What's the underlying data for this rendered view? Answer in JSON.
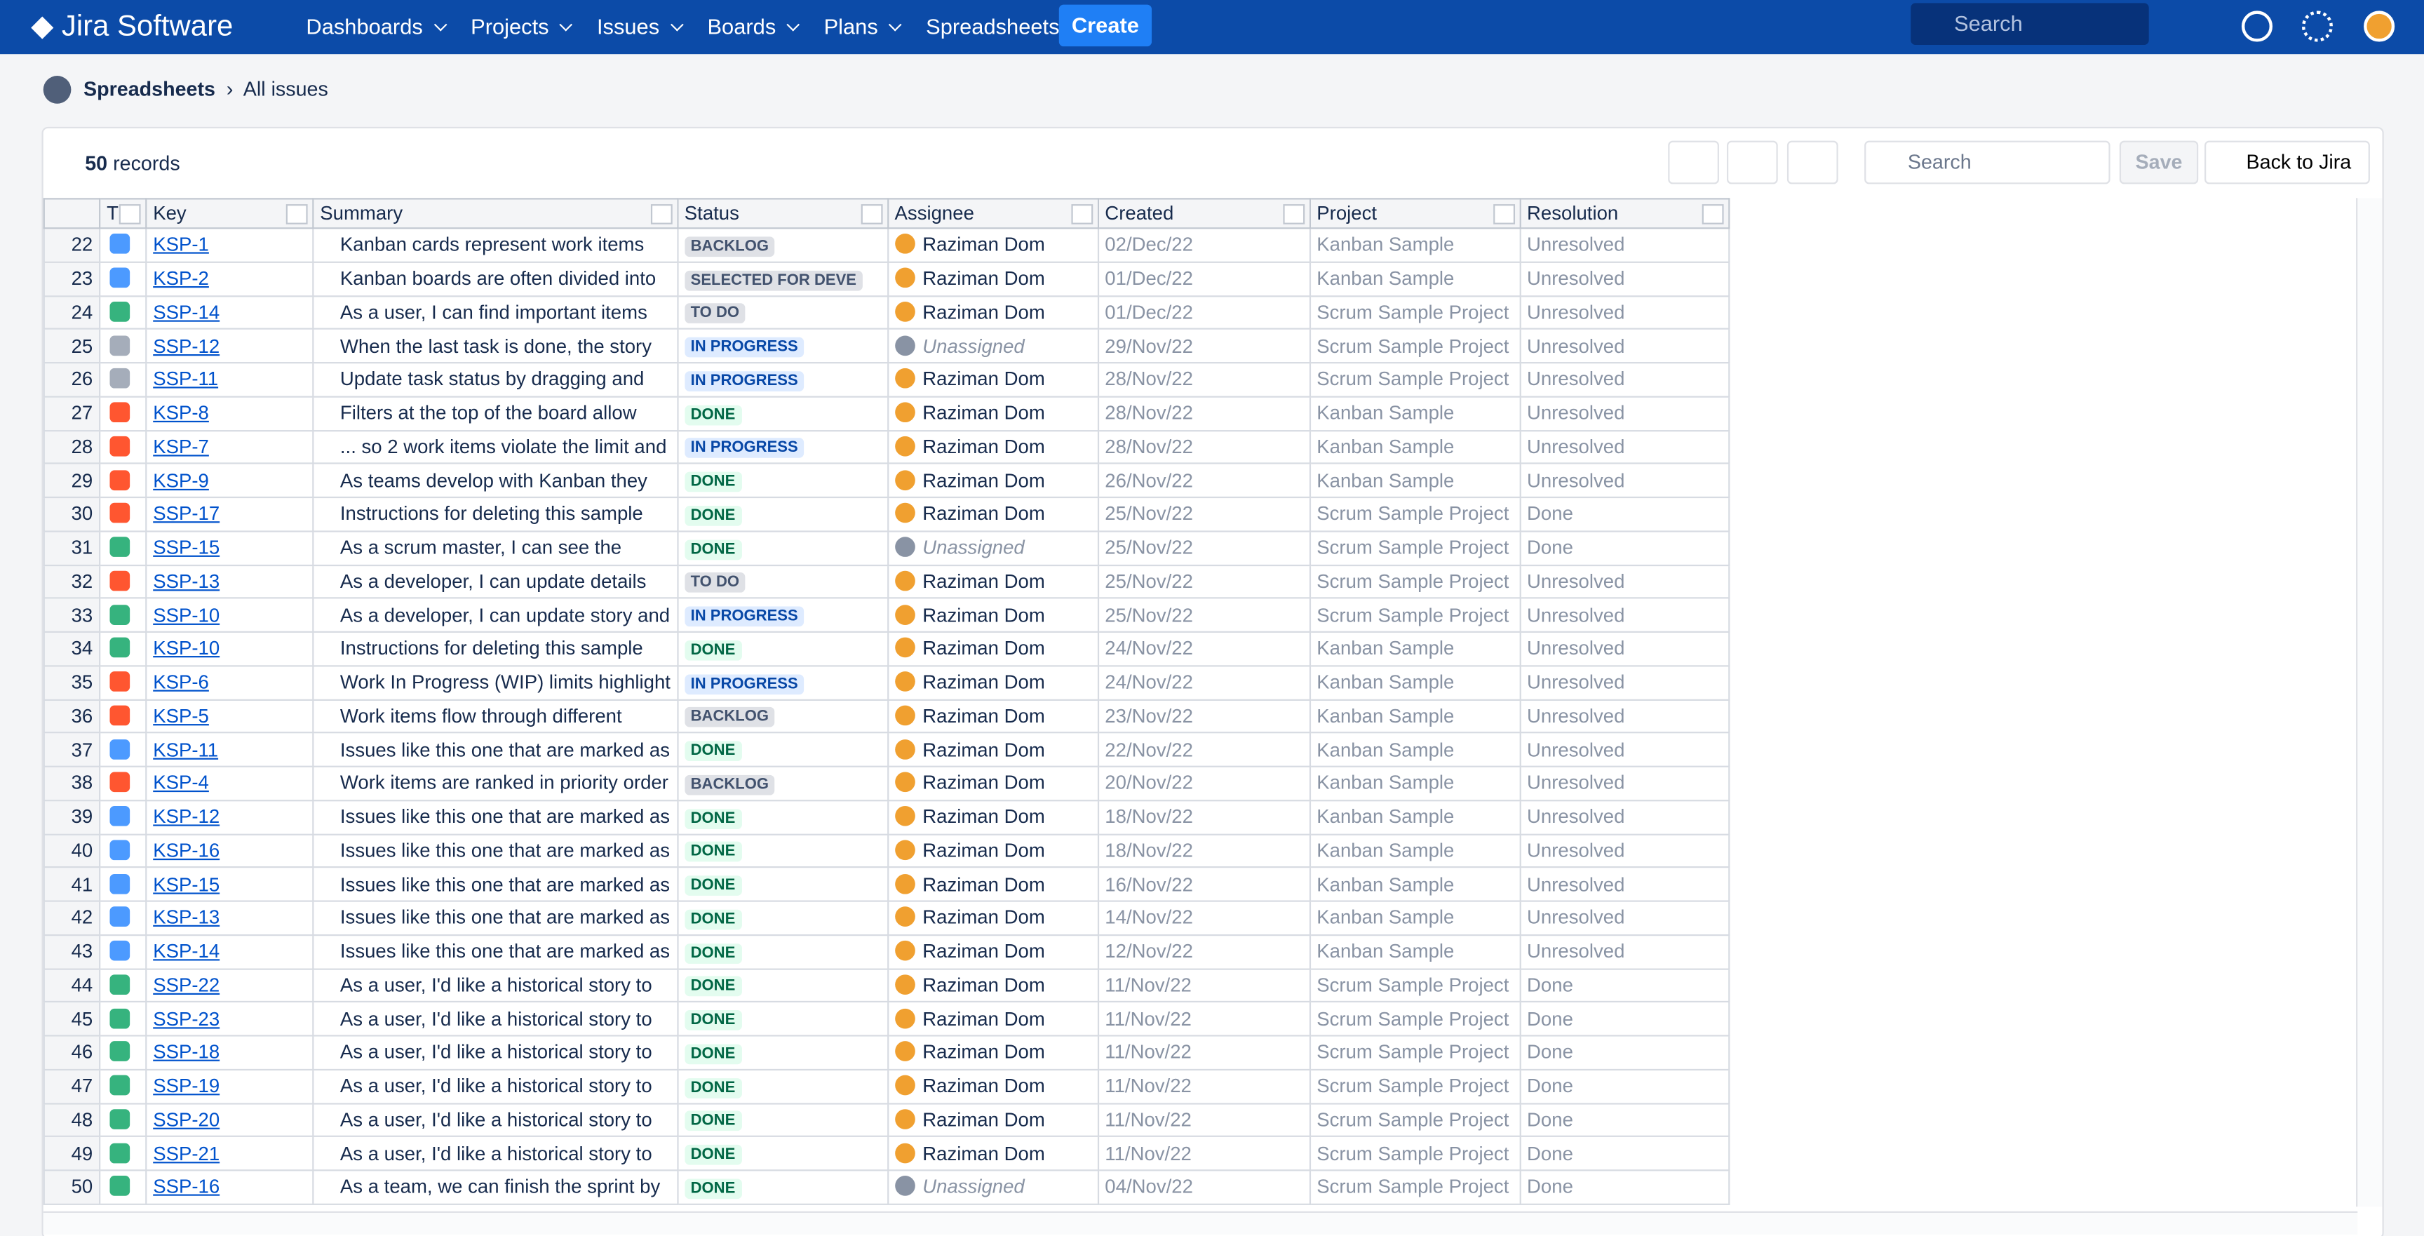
{
  "nav": {
    "logo": "Jira Software",
    "menu": [
      "Dashboards",
      "Projects",
      "Issues",
      "Boards",
      "Plans",
      "Spreadsheets"
    ],
    "create": "Create",
    "search": "Search"
  },
  "breadcrumb": {
    "parent": "Spreadsheets",
    "current": "All issues"
  },
  "toolbar": {
    "count": "50",
    "count_label": "records",
    "search": "Search",
    "save": "Save",
    "back": "Back to Jira"
  },
  "table": {
    "columns": [
      "T",
      "Key",
      "Summary",
      "Status",
      "Assignee",
      "Created",
      "Project",
      "Resolution"
    ],
    "rows": [
      {
        "num": 22,
        "icon_color": "#4c9aff",
        "key": "KSP-1",
        "summary": "Kanban cards represent work items",
        "status": "BACKLOG",
        "status_color": "#dfe1e6",
        "assignee": "Raziman Dom",
        "avatar_color": "#f0a030",
        "created": "02/Dec/22",
        "project": "Kanban Sample",
        "resolution": "Unresolved"
      },
      {
        "num": 23,
        "icon_color": "#4c9aff",
        "key": "KSP-2",
        "summary": "Kanban boards are often divided into",
        "status": "SELECTED FOR DEVE",
        "status_color": "#dfe1e6",
        "assignee": "Raziman Dom",
        "avatar_color": "#f0a030",
        "created": "01/Dec/22",
        "project": "Kanban Sample",
        "resolution": "Unresolved"
      },
      {
        "num": 24,
        "icon_color": "#36b37e",
        "key": "SSP-14",
        "summary": "As a user, I can find important items",
        "status": "TO DO",
        "status_color": "#dfe1e6",
        "assignee": "Raziman Dom",
        "avatar_color": "#f0a030",
        "created": "01/Dec/22",
        "project": "Scrum Sample Project",
        "resolution": "Unresolved"
      },
      {
        "num": 25,
        "icon_color": "#a5adba",
        "key": "SSP-12",
        "summary": "When the last task is done, the story",
        "status": "IN PROGRESS",
        "status_color": "#deebff",
        "assignee": "Unassigned",
        "avatar_color": "#8993a4",
        "created": "29/Nov/22",
        "project": "Scrum Sample Project",
        "resolution": "Unresolved"
      },
      {
        "num": 26,
        "icon_color": "#a5adba",
        "key": "SSP-11",
        "summary": "Update task status by dragging and",
        "status": "IN PROGRESS",
        "status_color": "#deebff",
        "assignee": "Raziman Dom",
        "avatar_color": "#f0a030",
        "created": "28/Nov/22",
        "project": "Scrum Sample Project",
        "resolution": "Unresolved"
      },
      {
        "num": 27,
        "icon_color": "#ff5630",
        "key": "KSP-8",
        "summary": "Filters at the top of the board allow",
        "status": "DONE",
        "status_color": "#e3fcef",
        "assignee": "Raziman Dom",
        "avatar_color": "#f0a030",
        "created": "28/Nov/22",
        "project": "Kanban Sample",
        "resolution": "Unresolved"
      },
      {
        "num": 28,
        "icon_color": "#ff5630",
        "key": "KSP-7",
        "summary": "... so 2 work items violate the limit and",
        "status": "IN PROGRESS",
        "status_color": "#deebff",
        "assignee": "Raziman Dom",
        "avatar_color": "#f0a030",
        "created": "28/Nov/22",
        "project": "Kanban Sample",
        "resolution": "Unresolved"
      },
      {
        "num": 29,
        "icon_color": "#ff5630",
        "key": "KSP-9",
        "summary": "As teams develop with Kanban they",
        "status": "DONE",
        "status_color": "#e3fcef",
        "assignee": "Raziman Dom",
        "avatar_color": "#f0a030",
        "created": "26/Nov/22",
        "project": "Kanban Sample",
        "resolution": "Unresolved"
      },
      {
        "num": 30,
        "icon_color": "#ff5630",
        "key": "SSP-17",
        "summary": "Instructions for deleting this sample",
        "status": "DONE",
        "status_color": "#e3fcef",
        "assignee": "Raziman Dom",
        "avatar_color": "#f0a030",
        "created": "25/Nov/22",
        "project": "Scrum Sample Project",
        "resolution": "Done"
      },
      {
        "num": 31,
        "icon_color": "#36b37e",
        "key": "SSP-15",
        "summary": "As a scrum master, I can see the",
        "status": "DONE",
        "status_color": "#e3fcef",
        "assignee": "Unassigned",
        "avatar_color": "#8993a4",
        "created": "25/Nov/22",
        "project": "Scrum Sample Project",
        "resolution": "Done"
      },
      {
        "num": 32,
        "icon_color": "#ff5630",
        "key": "SSP-13",
        "summary": "As a developer, I can update details",
        "status": "TO DO",
        "status_color": "#dfe1e6",
        "assignee": "Raziman Dom",
        "avatar_color": "#f0a030",
        "created": "25/Nov/22",
        "project": "Scrum Sample Project",
        "resolution": "Unresolved"
      },
      {
        "num": 33,
        "icon_color": "#36b37e",
        "key": "SSP-10",
        "summary": "As a developer, I can update story and",
        "status": "IN PROGRESS",
        "status_color": "#deebff",
        "assignee": "Raziman Dom",
        "avatar_color": "#f0a030",
        "created": "25/Nov/22",
        "project": "Scrum Sample Project",
        "resolution": "Unresolved"
      },
      {
        "num": 34,
        "icon_color": "#36b37e",
        "key": "KSP-10",
        "summary": "Instructions for deleting this sample",
        "status": "DONE",
        "status_color": "#e3fcef",
        "assignee": "Raziman Dom",
        "avatar_color": "#f0a030",
        "created": "24/Nov/22",
        "project": "Kanban Sample",
        "resolution": "Unresolved"
      },
      {
        "num": 35,
        "icon_color": "#ff5630",
        "key": "KSP-6",
        "summary": "Work In Progress (WIP) limits highlight",
        "status": "IN PROGRESS",
        "status_color": "#deebff",
        "assignee": "Raziman Dom",
        "avatar_color": "#f0a030",
        "created": "24/Nov/22",
        "project": "Kanban Sample",
        "resolution": "Unresolved"
      },
      {
        "num": 36,
        "icon_color": "#ff5630",
        "key": "KSP-5",
        "summary": "Work items flow through different",
        "status": "BACKLOG",
        "status_color": "#dfe1e6",
        "assignee": "Raziman Dom",
        "avatar_color": "#f0a030",
        "created": "23/Nov/22",
        "project": "Kanban Sample",
        "resolution": "Unresolved"
      },
      {
        "num": 37,
        "icon_color": "#4c9aff",
        "key": "KSP-11",
        "summary": "Issues like this one that are marked as",
        "status": "DONE",
        "status_color": "#e3fcef",
        "assignee": "Raziman Dom",
        "avatar_color": "#f0a030",
        "created": "22/Nov/22",
        "project": "Kanban Sample",
        "resolution": "Unresolved"
      },
      {
        "num": 38,
        "icon_color": "#ff5630",
        "key": "KSP-4",
        "summary": "Work items are ranked in priority order",
        "status": "BACKLOG",
        "status_color": "#dfe1e6",
        "assignee": "Raziman Dom",
        "avatar_color": "#f0a030",
        "created": "20/Nov/22",
        "project": "Kanban Sample",
        "resolution": "Unresolved"
      },
      {
        "num": 39,
        "icon_color": "#4c9aff",
        "key": "KSP-12",
        "summary": "Issues like this one that are marked as",
        "status": "DONE",
        "status_color": "#e3fcef",
        "assignee": "Raziman Dom",
        "avatar_color": "#f0a030",
        "created": "18/Nov/22",
        "project": "Kanban Sample",
        "resolution": "Unresolved"
      },
      {
        "num": 40,
        "icon_color": "#4c9aff",
        "key": "KSP-16",
        "summary": "Issues like this one that are marked as",
        "status": "DONE",
        "status_color": "#e3fcef",
        "assignee": "Raziman Dom",
        "avatar_color": "#f0a030",
        "created": "18/Nov/22",
        "project": "Kanban Sample",
        "resolution": "Unresolved"
      },
      {
        "num": 41,
        "icon_color": "#4c9aff",
        "key": "KSP-15",
        "summary": "Issues like this one that are marked as",
        "status": "DONE",
        "status_color": "#e3fcef",
        "assignee": "Raziman Dom",
        "avatar_color": "#f0a030",
        "created": "16/Nov/22",
        "project": "Kanban Sample",
        "resolution": "Unresolved"
      },
      {
        "num": 42,
        "icon_color": "#4c9aff",
        "key": "KSP-13",
        "summary": "Issues like this one that are marked as",
        "status": "DONE",
        "status_color": "#e3fcef",
        "assignee": "Raziman Dom",
        "avatar_color": "#f0a030",
        "created": "14/Nov/22",
        "project": "Kanban Sample",
        "resolution": "Unresolved"
      },
      {
        "num": 43,
        "icon_color": "#4c9aff",
        "key": "KSP-14",
        "summary": "Issues like this one that are marked as",
        "status": "DONE",
        "status_color": "#e3fcef",
        "assignee": "Raziman Dom",
        "avatar_color": "#f0a030",
        "created": "12/Nov/22",
        "project": "Kanban Sample",
        "resolution": "Unresolved"
      },
      {
        "num": 44,
        "icon_color": "#36b37e",
        "key": "SSP-22",
        "summary": "As a user, I'd like a historical story to",
        "status": "DONE",
        "status_color": "#e3fcef",
        "assignee": "Raziman Dom",
        "avatar_color": "#f0a030",
        "created": "11/Nov/22",
        "project": "Scrum Sample Project",
        "resolution": "Done"
      },
      {
        "num": 45,
        "icon_color": "#36b37e",
        "key": "SSP-23",
        "summary": "As a user, I'd like a historical story to",
        "status": "DONE",
        "status_color": "#e3fcef",
        "assignee": "Raziman Dom",
        "avatar_color": "#f0a030",
        "created": "11/Nov/22",
        "project": "Scrum Sample Project",
        "resolution": "Done"
      },
      {
        "num": 46,
        "icon_color": "#36b37e",
        "key": "SSP-18",
        "summary": "As a user, I'd like a historical story to",
        "status": "DONE",
        "status_color": "#e3fcef",
        "assignee": "Raziman Dom",
        "avatar_color": "#f0a030",
        "created": "11/Nov/22",
        "project": "Scrum Sample Project",
        "resolution": "Done"
      },
      {
        "num": 47,
        "icon_color": "#36b37e",
        "key": "SSP-19",
        "summary": "As a user, I'd like a historical story to",
        "status": "DONE",
        "status_color": "#e3fcef",
        "assignee": "Raziman Dom",
        "avatar_color": "#f0a030",
        "created": "11/Nov/22",
        "project": "Scrum Sample Project",
        "resolution": "Done"
      },
      {
        "num": 48,
        "icon_color": "#36b37e",
        "key": "SSP-20",
        "summary": "As a user, I'd like a historical story to",
        "status": "DONE",
        "status_color": "#e3fcef",
        "assignee": "Raziman Dom",
        "avatar_color": "#f0a030",
        "created": "11/Nov/22",
        "project": "Scrum Sample Project",
        "resolution": "Done"
      },
      {
        "num": 49,
        "icon_color": "#36b37e",
        "key": "SSP-21",
        "summary": "As a user, I'd like a historical story to",
        "status": "DONE",
        "status_color": "#e3fcef",
        "assignee": "Raziman Dom",
        "avatar_color": "#f0a030",
        "created": "11/Nov/22",
        "project": "Scrum Sample Project",
        "resolution": "Done"
      },
      {
        "num": 50,
        "icon_color": "#36b37e",
        "key": "SSP-16",
        "summary": "As a team, we can finish the sprint by",
        "status": "DONE",
        "status_color": "#e3fcef",
        "assignee": "Unassigned",
        "avatar_color": "#8993a4",
        "created": "04/Nov/22",
        "project": "Scrum Sample Project",
        "resolution": "Done"
      }
    ]
  }
}
